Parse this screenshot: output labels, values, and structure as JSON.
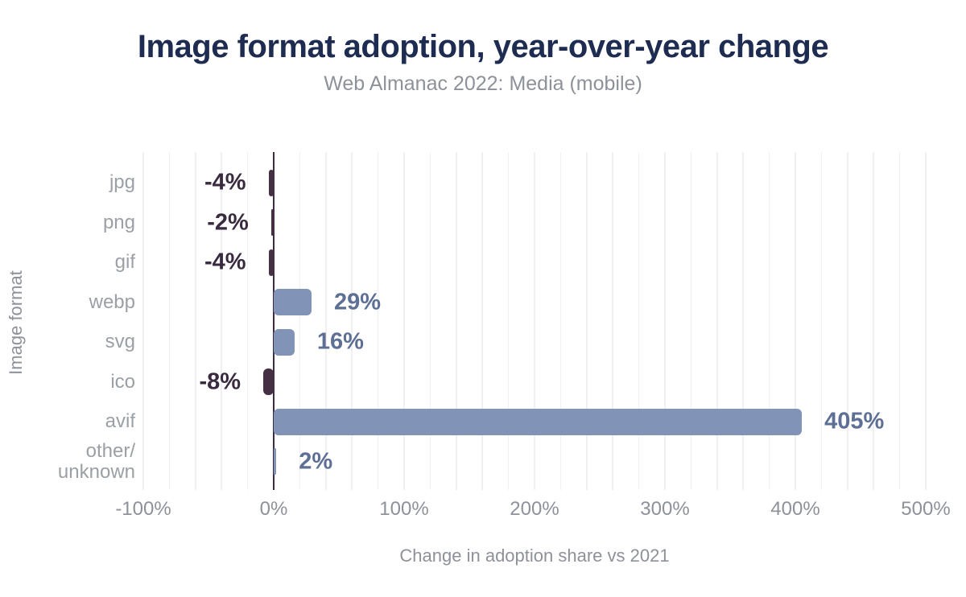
{
  "header": {
    "title": "Image format adoption, year-over-year change",
    "subtitle": "Web Almanac 2022: Media (mobile)"
  },
  "chart_data": {
    "type": "bar",
    "orientation": "horizontal",
    "title": "Image format adoption, year-over-year change",
    "subtitle": "Web Almanac 2022: Media (mobile)",
    "categories": [
      "jpg",
      "png",
      "gif",
      "webp",
      "svg",
      "ico",
      "avif",
      "other/\nunknown"
    ],
    "values": [
      -4,
      -2,
      -4,
      29,
      16,
      -8,
      405,
      2
    ],
    "value_labels": [
      "-4%",
      "-2%",
      "-4%",
      "29%",
      "16%",
      "-8%",
      "405%",
      "2%"
    ],
    "xlabel": "Change in adoption share vs 2021",
    "ylabel": "Image format",
    "x_ticks": [
      "-100%",
      "0%",
      "100%",
      "200%",
      "300%",
      "400%",
      "500%"
    ],
    "x_tick_values": [
      -100,
      0,
      100,
      200,
      300,
      400,
      500
    ],
    "xlim": [
      -100,
      500
    ],
    "grid_step_percent": 20,
    "grid": true,
    "legend": "none",
    "colors": {
      "positive_bar": "#8194b8",
      "negative_bar": "#453043",
      "positive_label": "#5d6f94",
      "negative_label": "#392a3f",
      "zero_line": "#3d2c41",
      "gridline": "#f0f0f2",
      "title": "#1d2c50",
      "muted_text": "#8d9199",
      "category_label": "#9aa0a6",
      "background": "#ffffff"
    }
  }
}
